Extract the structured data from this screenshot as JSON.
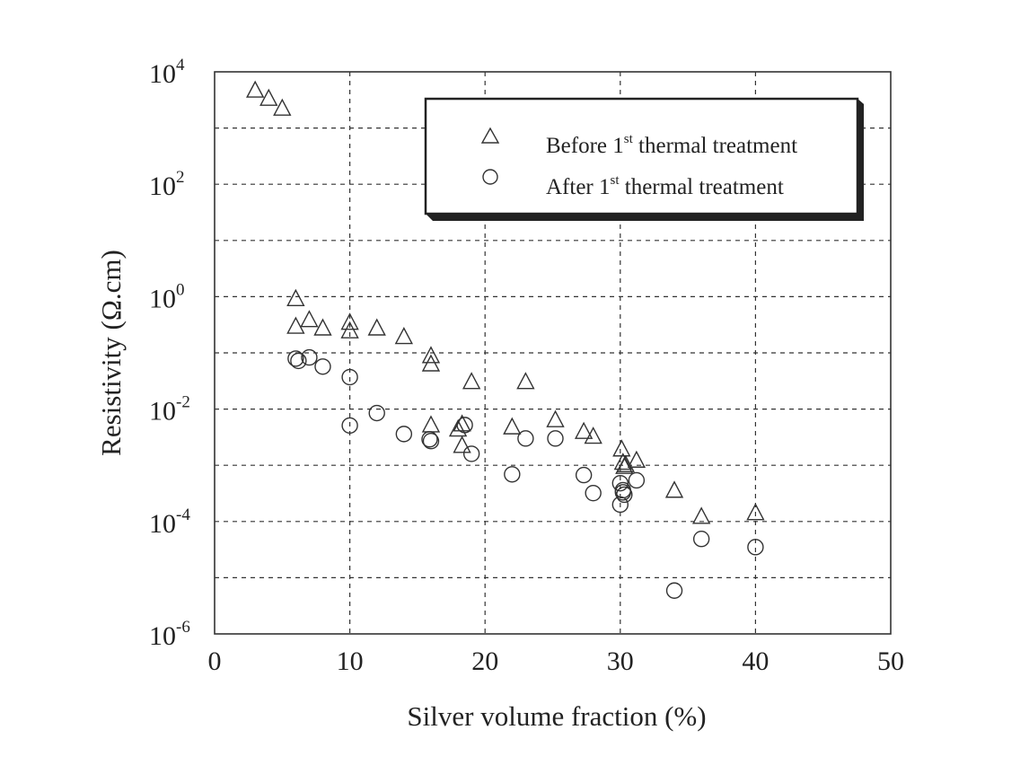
{
  "chart_data": {
    "type": "scatter",
    "title": "",
    "xlabel": "Silver volume fraction (%)",
    "ylabel": "Resistivity (Ω.cm)",
    "xlim": [
      0,
      50
    ],
    "ylim": [
      1e-06,
      10000.0
    ],
    "yscale": "log",
    "grid": true,
    "legend_position": "upper right",
    "x_ticks": [
      0,
      10,
      20,
      30,
      40,
      50
    ],
    "y_ticks": [
      {
        "base": "10",
        "exp": "4",
        "value": 10000
      },
      {
        "base": "10",
        "exp": "2",
        "value": 100
      },
      {
        "base": "10",
        "exp": "0",
        "value": 1
      },
      {
        "base": "10",
        "exp": "-2",
        "value": 0.01
      },
      {
        "base": "10",
        "exp": "-4",
        "value": 0.0001
      },
      {
        "base": "10",
        "exp": "-6",
        "value": 1e-06
      }
    ],
    "series": [
      {
        "name": "Before 1st thermal treatment",
        "marker": "triangle",
        "points": [
          [
            3,
            4600
          ],
          [
            4,
            3300
          ],
          [
            5,
            2200
          ],
          [
            6,
            0.9
          ],
          [
            6,
            0.29
          ],
          [
            7,
            0.38
          ],
          [
            8,
            0.27
          ],
          [
            10,
            0.34
          ],
          [
            10,
            0.24
          ],
          [
            12,
            0.27
          ],
          [
            14,
            0.19
          ],
          [
            16,
            0.087
          ],
          [
            16,
            0.062
          ],
          [
            19,
            0.03
          ],
          [
            23,
            0.03
          ],
          [
            16,
            0.0051
          ],
          [
            18,
            0.0043
          ],
          [
            18.3,
            0.0053
          ],
          [
            18.3,
            0.0022
          ],
          [
            22,
            0.0047
          ],
          [
            25.2,
            0.0063
          ],
          [
            27.3,
            0.0039
          ],
          [
            28,
            0.0032
          ],
          [
            30.1,
            0.0019
          ],
          [
            30.2,
            0.0011
          ],
          [
            30.3,
            0.00093
          ],
          [
            30.4,
            0.001
          ],
          [
            31.2,
            0.0012
          ],
          [
            34,
            0.00035
          ],
          [
            36,
            0.00012
          ],
          [
            40,
            0.00014
          ]
        ]
      },
      {
        "name": "After 1st thermal treatment",
        "marker": "circle",
        "points": [
          [
            6,
            0.079
          ],
          [
            6.2,
            0.072
          ],
          [
            7,
            0.083
          ],
          [
            8,
            0.057
          ],
          [
            10,
            0.037
          ],
          [
            10,
            0.0051
          ],
          [
            12,
            0.0085
          ],
          [
            14,
            0.0036
          ],
          [
            15.9,
            0.0029
          ],
          [
            16,
            0.0027
          ],
          [
            18.5,
            0.0052
          ],
          [
            19,
            0.0016
          ],
          [
            22,
            0.00069
          ],
          [
            23,
            0.003
          ],
          [
            25.2,
            0.003
          ],
          [
            27.3,
            0.00067
          ],
          [
            28,
            0.00032
          ],
          [
            30,
            0.00048
          ],
          [
            30.2,
            0.00033
          ],
          [
            30.3,
            0.0003
          ],
          [
            30.2,
            0.00036
          ],
          [
            31.2,
            0.00054
          ],
          [
            30,
            0.0002
          ],
          [
            34,
            5.9e-06
          ],
          [
            36,
            4.9e-05
          ],
          [
            40,
            3.5e-05
          ]
        ]
      }
    ]
  },
  "legend": {
    "items": [
      {
        "prefix": "Before 1",
        "sup": "st",
        "suffix": " thermal treatment",
        "marker": "triangle-icon"
      },
      {
        "prefix": "After 1",
        "sup": "st",
        "suffix": " thermal treatment",
        "marker": "circle-icon"
      }
    ]
  },
  "axes": {
    "xlabel": "Silver volume fraction (%)",
    "ylabel": "Resistivity (Ω.cm)"
  }
}
